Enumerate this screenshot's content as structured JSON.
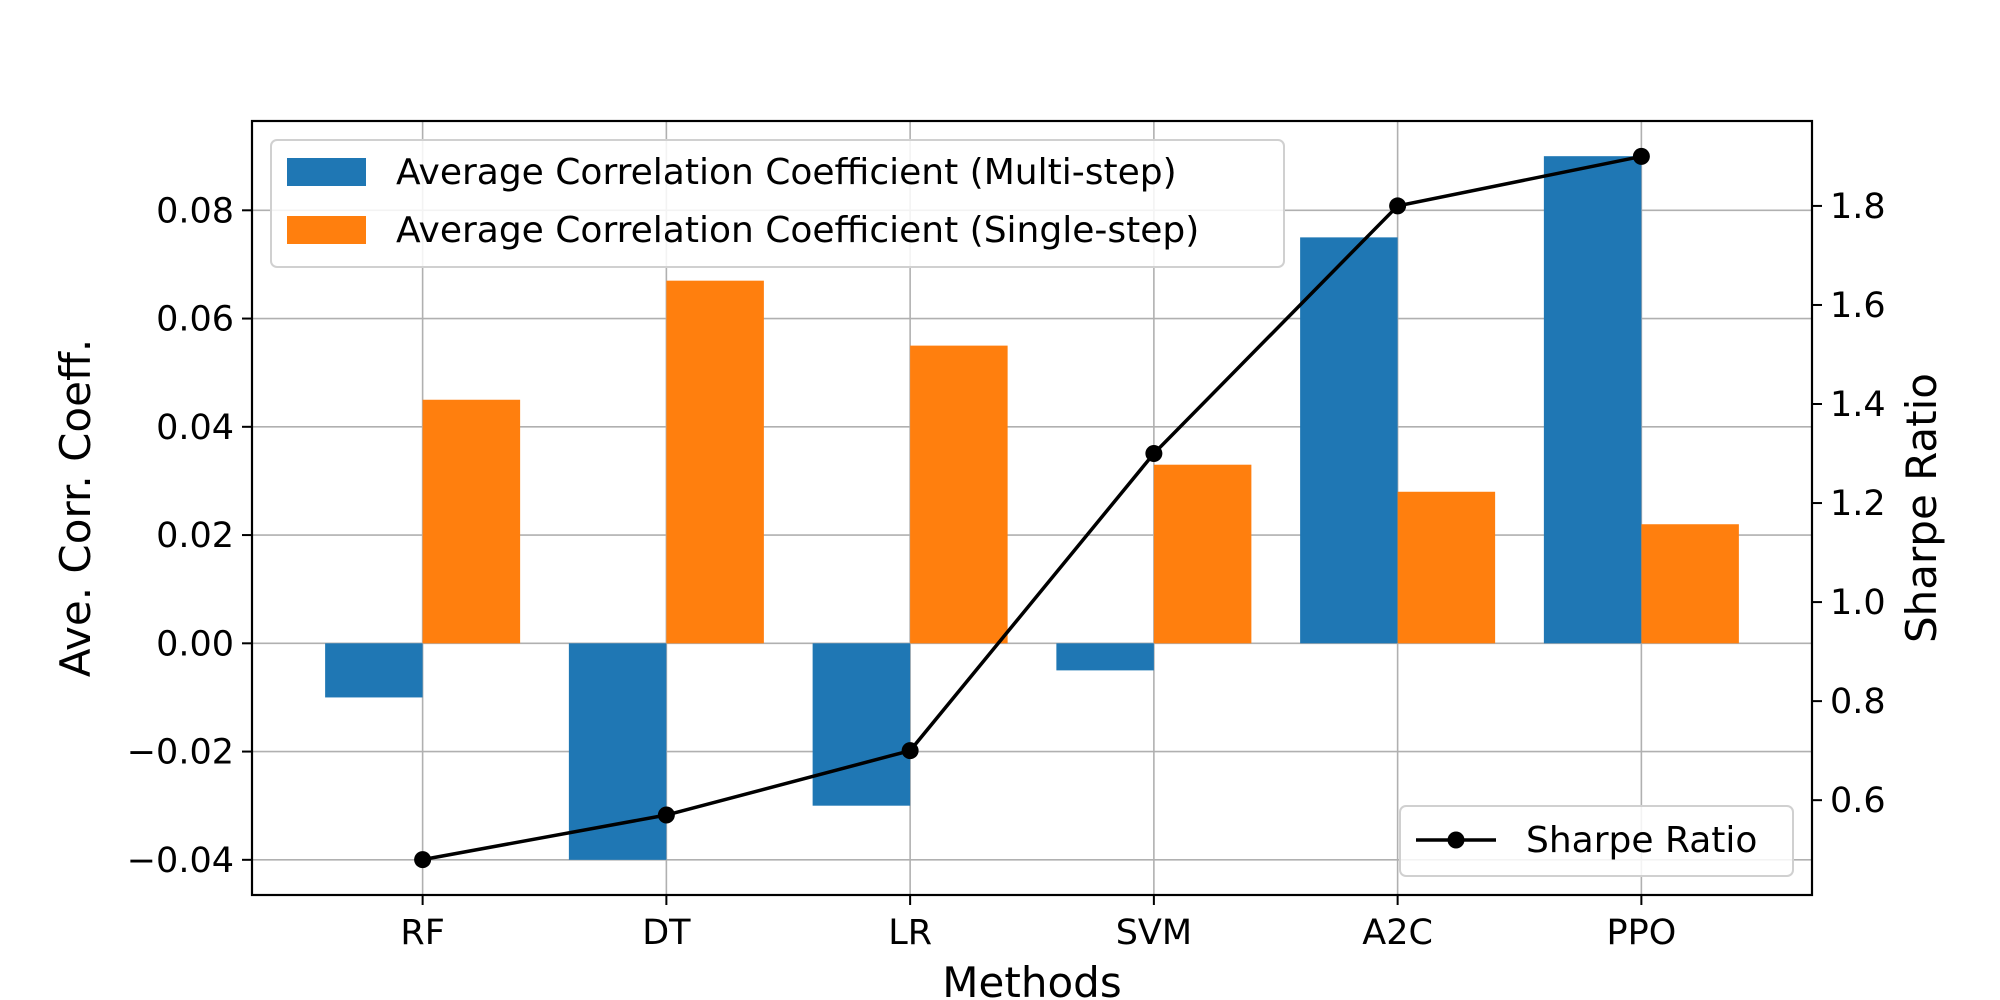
{
  "chart_data": {
    "type": "bar",
    "categories": [
      "RF",
      "DT",
      "LR",
      "SVM",
      "A2C",
      "PPO"
    ],
    "series": [
      {
        "name": "Average Correlation Coefficient (Multi-step)",
        "color": "#1f77b4",
        "axis": "left",
        "kind": "bar",
        "values": [
          -0.01,
          -0.04,
          -0.03,
          -0.005,
          0.075,
          0.09
        ]
      },
      {
        "name": "Average Correlation Coefficient (Single-step)",
        "color": "#ff7f0e",
        "axis": "left",
        "kind": "bar",
        "values": [
          0.045,
          0.067,
          0.055,
          0.033,
          0.028,
          0.022
        ]
      },
      {
        "name": "Sharpe Ratio",
        "color": "#000000",
        "axis": "right",
        "kind": "line",
        "marker": "circle",
        "values": [
          0.48,
          0.57,
          0.7,
          1.3,
          1.8,
          1.9
        ]
      }
    ],
    "xlabel": "Methods",
    "ylabel": "Ave. Corr. Coeff.",
    "y2label": "Sharpe Ratio",
    "ylim": [
      -0.0465,
      0.0965
    ],
    "y2lim": [
      0.4085,
      1.9715
    ],
    "yticks": [
      -0.04,
      -0.02,
      0.0,
      0.02,
      0.04,
      0.06,
      0.08
    ],
    "ytick_labels": [
      "−0.04",
      "−0.02",
      "0.00",
      "0.02",
      "0.04",
      "0.06",
      "0.08"
    ],
    "y2ticks": [
      0.6,
      0.8,
      1.0,
      1.2,
      1.4,
      1.6,
      1.8
    ],
    "y2tick_labels": [
      "0.6",
      "0.8",
      "1.0",
      "1.2",
      "1.4",
      "1.6",
      "1.8"
    ],
    "grid": true,
    "legend_bars_position": "upper-left",
    "legend_line_position": "lower-right"
  }
}
